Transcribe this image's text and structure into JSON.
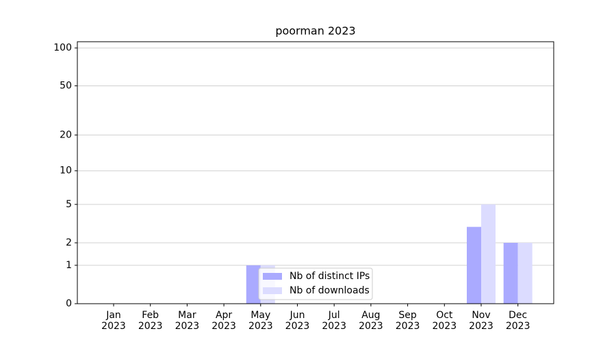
{
  "chart_data": {
    "type": "bar",
    "title": "poorman 2023",
    "categories": [
      "Jan\n2023",
      "Feb\n2023",
      "Mar\n2023",
      "Apr\n2023",
      "May\n2023",
      "Jun\n2023",
      "Jul\n2023",
      "Aug\n2023",
      "Sep\n2023",
      "Oct\n2023",
      "Nov\n2023",
      "Dec\n2023"
    ],
    "series": [
      {
        "name": "Nb of distinct IPs",
        "color": "#aaaaff",
        "values": [
          0,
          0,
          0,
          0,
          1,
          0,
          0,
          0,
          0,
          0,
          3,
          2
        ]
      },
      {
        "name": "Nb of downloads",
        "color": "#dcdcff",
        "values": [
          0,
          0,
          0,
          0,
          1,
          0,
          0,
          0,
          0,
          0,
          5,
          2
        ]
      }
    ],
    "yscale": "log1p",
    "ylim": [
      0,
      112
    ],
    "yticks": [
      0,
      1,
      2,
      5,
      10,
      20,
      50,
      100
    ],
    "grid": true,
    "legend": "lower center"
  }
}
